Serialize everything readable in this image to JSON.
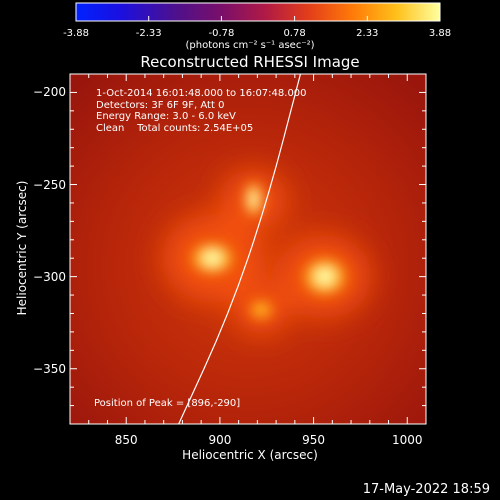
{
  "chart_data": {
    "type": "heatmap",
    "title": "Reconstructed RHESSI Image",
    "xlabel": "Heliocentric X (arcsec)",
    "ylabel": "Heliocentric Y (arcsec)",
    "xlim": [
      820,
      1010
    ],
    "ylim": [
      -380,
      -190
    ],
    "xticks": [
      "850",
      "900",
      "950",
      "1000"
    ],
    "xtick_values": [
      850,
      900,
      950,
      1000
    ],
    "yticks": [
      "-200",
      "-250",
      "-300",
      "-350"
    ],
    "ytick_values": [
      -200,
      -250,
      -300,
      -350
    ],
    "colorbar": {
      "ticks": [
        "-3.88",
        "-2.33",
        "-0.78",
        "0.78",
        "2.33",
        "3.88"
      ],
      "tick_values": [
        -3.88,
        -2.33,
        -0.78,
        0.78,
        2.33,
        3.88
      ],
      "range": [
        -3.88,
        3.88
      ],
      "unit_text": "(photons cm⁻² s⁻¹ asec⁻²)"
    },
    "annotations": [
      "1-Oct-2014 16:01:48.000 to 16:07:48.000",
      "Detectors: 3F 6F 9F, Att 0",
      "Energy Range: 3.0 - 6.0 keV",
      "Clean    Total counts: 2.54E+05"
    ],
    "peak_label": "Position of Peak = [896,-290]",
    "sources": [
      {
        "x": 896,
        "y": -290,
        "intensity": 3.88
      },
      {
        "x": 956,
        "y": -300,
        "intensity": 3.6
      },
      {
        "x": 918,
        "y": -258,
        "intensity": 2.3
      },
      {
        "x": 922,
        "y": -318,
        "intensity": 1.7
      }
    ],
    "limb_curve": [
      {
        "x": 943,
        "y": -190
      },
      {
        "x": 925,
        "y": -260
      },
      {
        "x": 905,
        "y": -320
      },
      {
        "x": 878,
        "y": -380
      }
    ],
    "limb_color": "#ffffff",
    "colormap": "rhessi-hot"
  },
  "footer": {
    "date": "17-May-2022 18:59"
  }
}
